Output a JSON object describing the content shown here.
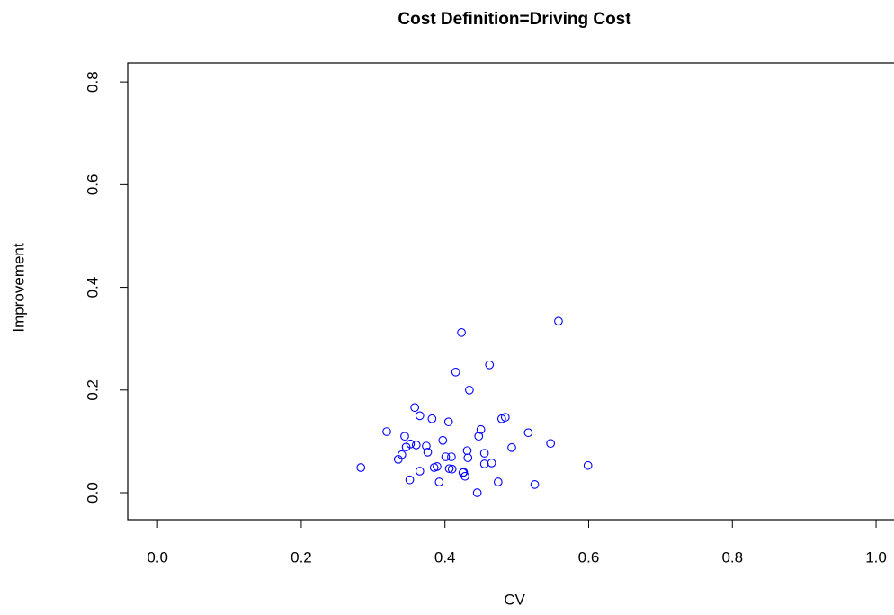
{
  "chart_data": {
    "type": "scatter",
    "title": "Cost Definition=Driving Cost",
    "x_label": "CV",
    "y_label": "Improvement",
    "color": "#0000ff",
    "xlim": [
      -0.0415,
      1.035
    ],
    "ylim": [
      -0.0525,
      0.837
    ],
    "xticks": [
      {
        "value": 0,
        "label": "0.0"
      },
      0.2,
      0.4,
      0.6,
      0.8,
      {
        "value": 1,
        "label": "1.0"
      }
    ],
    "yticks": [
      {
        "value": 0,
        "label": "0.0"
      },
      0.2,
      0.4,
      0.6,
      0.8
    ],
    "x": [
      0.283,
      0.319,
      0.335,
      0.34,
      0.344,
      0.346,
      0.351,
      0.352,
      0.358,
      0.36,
      0.365,
      0.365,
      0.374,
      0.376,
      0.382,
      0.385,
      0.389,
      0.392,
      0.397,
      0.401,
      0.405,
      0.406,
      0.409,
      0.41,
      0.415,
      0.423,
      0.425,
      0.426,
      0.428,
      0.431,
      0.432,
      0.434,
      0.445,
      0.447,
      0.45,
      0.455,
      0.455,
      0.462,
      0.465,
      0.474,
      0.479,
      0.484,
      0.493,
      0.516,
      0.525,
      0.547,
      0.558,
      0.599
    ],
    "y": [
      0.049,
      0.119,
      0.065,
      0.074,
      0.11,
      0.089,
      0.025,
      0.095,
      0.166,
      0.093,
      0.15,
      0.042,
      0.091,
      0.079,
      0.144,
      0.049,
      0.051,
      0.021,
      0.102,
      0.07,
      0.138,
      0.047,
      0.07,
      0.046,
      0.235,
      0.312,
      0.039,
      0.04,
      0.032,
      0.082,
      0.068,
      0.2,
      0.0,
      0.11,
      0.123,
      0.077,
      0.056,
      0.249,
      0.058,
      0.021,
      0.144,
      0.147,
      0.088,
      0.117,
      0.016,
      0.096,
      0.334,
      0.053
    ]
  }
}
